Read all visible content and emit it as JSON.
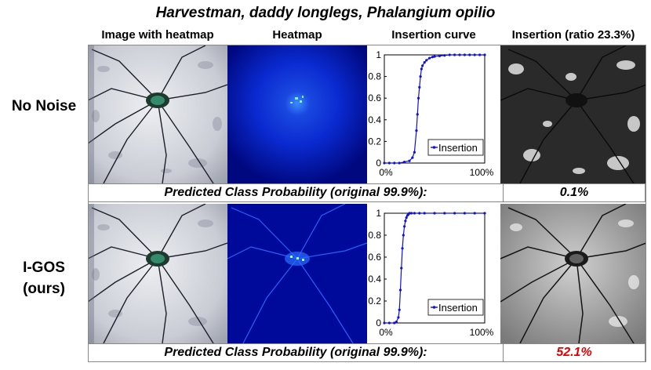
{
  "title": "Harvestman, daddy longlegs, Phalangium opilio",
  "columns": {
    "image_with_heatmap": "Image with heatmap",
    "heatmap": "Heatmap",
    "insertion_curve": "Insertion curve",
    "insertion_ratio": "Insertion (ratio 23.3%)"
  },
  "rows": [
    {
      "label_line1": "No Noise",
      "label_line2": "",
      "prob_label": "Predicted Class Probability (original 99.9%):",
      "prob_value": "0.1%",
      "prob_value_color": "#000000"
    },
    {
      "label_line1": "I-GOS",
      "label_line2": "(ours)",
      "prob_label": "Predicted Class Probability (original 99.9%):",
      "prob_value": "52.1%",
      "prob_value_color": "#e00000"
    }
  ],
  "colors": {
    "series": "#1010e0",
    "heatmap_dark": "#000880",
    "heatmap_mid": "#0a2ad0"
  },
  "chart_data": [
    {
      "type": "line",
      "series": [
        {
          "name": "Insertion",
          "x": [
            0,
            5,
            10,
            15,
            20,
            25,
            28,
            30,
            32,
            33,
            34,
            35,
            36,
            37,
            38,
            40,
            42,
            45,
            48,
            50,
            55,
            60,
            65,
            70,
            75,
            80,
            85,
            90,
            95,
            100
          ],
          "values": [
            0,
            0,
            0,
            0,
            0.01,
            0.02,
            0.05,
            0.1,
            0.3,
            0.45,
            0.6,
            0.7,
            0.8,
            0.87,
            0.9,
            0.93,
            0.95,
            0.97,
            0.98,
            0.985,
            0.99,
            0.995,
            1,
            1,
            1,
            1,
            1,
            1,
            1,
            1
          ]
        }
      ],
      "xticks": [
        "0%",
        "100%"
      ],
      "yticks": [
        "0",
        "0.2",
        "0.4",
        "0.6",
        "0.8",
        "1"
      ],
      "ylim": [
        0,
        1
      ],
      "xlim": [
        0,
        100
      ],
      "legend": "bottom-right"
    },
    {
      "type": "line",
      "series": [
        {
          "name": "Insertion",
          "x": [
            0,
            5,
            10,
            12,
            14,
            15,
            16,
            17,
            18,
            19,
            20,
            21,
            22,
            23,
            24,
            25,
            27,
            30,
            35,
            40,
            50,
            60,
            70,
            80,
            90,
            100
          ],
          "values": [
            0,
            0,
            0,
            0.01,
            0.05,
            0.12,
            0.3,
            0.5,
            0.68,
            0.8,
            0.88,
            0.93,
            0.96,
            0.98,
            0.99,
            1,
            1,
            1,
            1,
            1,
            1,
            1,
            1,
            1,
            1,
            1
          ]
        }
      ],
      "xticks": [
        "0%",
        "100%"
      ],
      "yticks": [
        "0",
        "0.2",
        "0.4",
        "0.6",
        "0.8",
        "1"
      ],
      "ylim": [
        0,
        1
      ],
      "xlim": [
        0,
        100
      ],
      "legend": "bottom-right"
    }
  ]
}
